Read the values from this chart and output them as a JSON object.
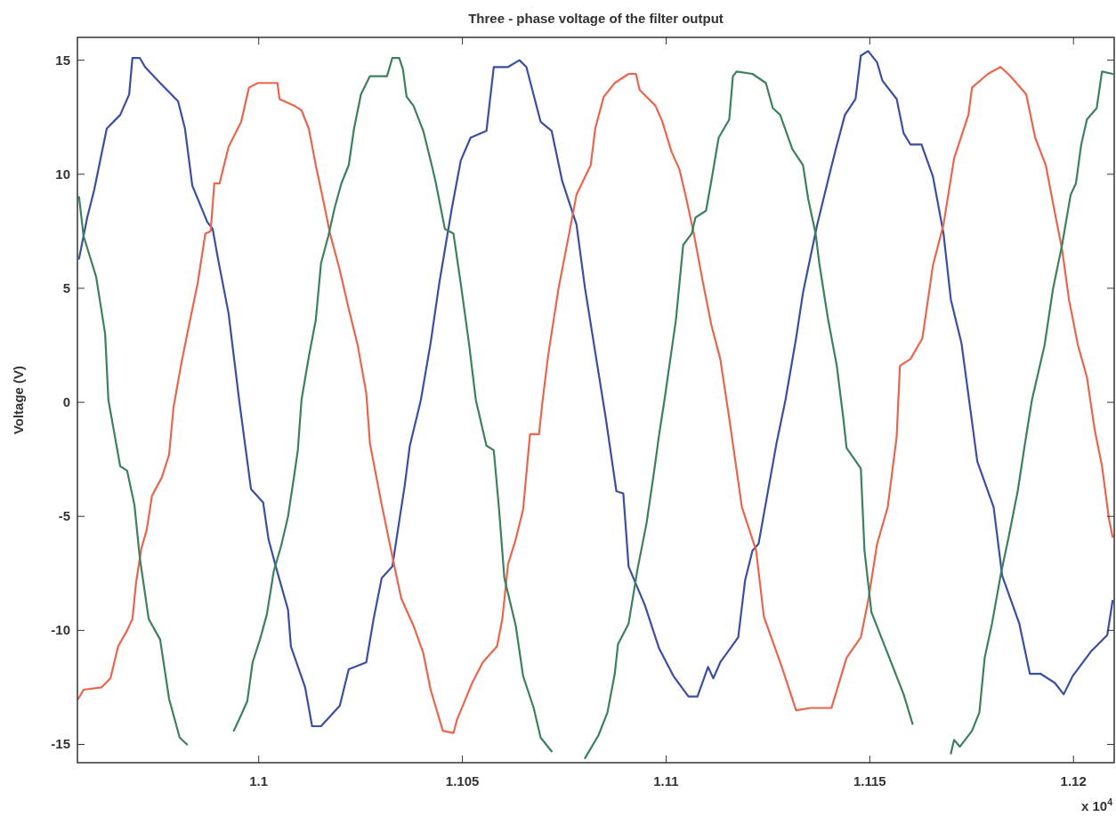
{
  "chart_data": {
    "type": "line",
    "title": "Three - phase voltage of the filter output",
    "ylabel": "Voltage (V)",
    "annotations": [
      "x 10$^{4}$"
    ],
    "xlim": [
      1.09555,
      1.121
    ],
    "ylim": [
      -15.8,
      16
    ],
    "xticks": [
      1.1,
      1.105,
      1.11,
      1.115,
      1.12
    ],
    "yticks": [
      -15,
      -10,
      -5,
      0,
      5,
      10,
      15
    ],
    "grid": false,
    "marker": "none",
    "line_style": "solid",
    "series": [
      {
        "color": "#3a4fa0",
        "x": [
          1.09559,
          1.09579,
          1.09596,
          1.09627,
          1.0966,
          1.09682,
          1.0969,
          1.09708,
          1.09721,
          1.09758,
          1.09802,
          1.09819,
          1.09837,
          1.09874,
          1.09887,
          1.099,
          1.09926,
          1.09952,
          1.09981,
          1.10011,
          1.10024,
          1.10042,
          1.10072,
          1.10079,
          1.10114,
          1.10131,
          1.10153,
          1.10199,
          1.10221,
          1.10264,
          1.10282,
          1.10302,
          1.10328,
          1.10345,
          1.10358,
          1.10371,
          1.10398,
          1.10422,
          1.10443,
          1.10474,
          1.10496,
          1.1052,
          1.10559,
          1.10577,
          1.10612,
          1.1064,
          1.10657,
          1.10692,
          1.10719,
          1.10745,
          1.1078,
          1.10801,
          1.10826,
          1.10852,
          1.10878,
          1.10895,
          1.10908,
          1.10948,
          1.10983,
          1.11018,
          1.11055,
          1.11077,
          1.11103,
          1.11116,
          1.11133,
          1.11177,
          1.11194,
          1.11212,
          1.11227,
          1.11249,
          1.11271,
          1.11293,
          1.11319,
          1.11336,
          1.11371,
          1.11397,
          1.11415,
          1.11439,
          1.11465,
          1.11478,
          1.11496,
          1.11518,
          1.11531,
          1.11566,
          1.11583,
          1.116,
          1.11627,
          1.11655,
          1.11681,
          1.11699,
          1.11725,
          1.11764,
          1.11804,
          1.11825,
          1.11867,
          1.11893,
          1.11919,
          1.11954,
          1.11976,
          1.11998,
          1.12044,
          1.12083,
          1.12096
        ],
        "values": [
          6.3,
          8.1,
          9.3,
          12.0,
          12.6,
          13.5,
          15.1,
          15.1,
          14.7,
          14.0,
          13.2,
          12.0,
          9.5,
          7.9,
          7.6,
          6.3,
          3.9,
          0.1,
          -3.8,
          -4.4,
          -6.0,
          -7.2,
          -9.1,
          -10.7,
          -12.5,
          -14.2,
          -14.2,
          -13.3,
          -11.7,
          -11.4,
          -9.5,
          -7.7,
          -7.2,
          -5.2,
          -3.7,
          -1.9,
          0.1,
          2.6,
          5.2,
          8.5,
          10.6,
          11.6,
          11.9,
          14.7,
          14.7,
          15.0,
          14.7,
          12.3,
          11.9,
          9.7,
          7.8,
          5.0,
          2.2,
          -0.7,
          -3.9,
          -4.0,
          -7.2,
          -8.9,
          -10.8,
          -12.0,
          -12.9,
          -12.9,
          -11.6,
          -12.1,
          -11.4,
          -10.3,
          -7.8,
          -6.5,
          -6.2,
          -4.0,
          -1.8,
          0.1,
          2.8,
          4.8,
          7.8,
          9.7,
          11.0,
          12.6,
          13.3,
          15.2,
          15.4,
          14.9,
          14.1,
          13.3,
          11.8,
          11.3,
          11.3,
          9.9,
          7.4,
          4.5,
          2.6,
          -2.6,
          -4.6,
          -7.6,
          -9.7,
          -11.9,
          -11.9,
          -12.3,
          -12.8,
          -12.0,
          -10.9,
          -10.2,
          -8.7
        ]
      },
      {
        "color": "#e8664f",
        "x": [
          1.09557,
          1.0957,
          1.09614,
          1.09636,
          1.09655,
          1.09677,
          1.0969,
          1.09699,
          1.09712,
          1.09725,
          1.09738,
          1.09762,
          1.0978,
          1.09791,
          1.0981,
          1.09828,
          1.0985,
          1.09869,
          1.09882,
          1.09891,
          1.09904,
          1.09926,
          1.09957,
          1.09976,
          1.09998,
          1.10046,
          1.10051,
          1.10088,
          1.10105,
          1.10123,
          1.1014,
          1.10158,
          1.10175,
          1.10199,
          1.10221,
          1.10243,
          1.10264,
          1.10273,
          1.10302,
          1.10332,
          1.1035,
          1.1038,
          1.10404,
          1.10422,
          1.10452,
          1.10478,
          1.10487,
          1.10524,
          1.1055,
          1.10585,
          1.10598,
          1.10612,
          1.10631,
          1.10649,
          1.10666,
          1.10688,
          1.10697,
          1.1071,
          1.10736,
          1.10762,
          1.1078,
          1.10815,
          1.10826,
          1.10847,
          1.10874,
          1.10908,
          1.10926,
          1.10935,
          1.10974,
          1.10991,
          1.11013,
          1.11033,
          1.1105,
          1.11068,
          1.1109,
          1.11111,
          1.11133,
          1.11155,
          1.11186,
          1.11221,
          1.1124,
          1.11284,
          1.11319,
          1.11354,
          1.11406,
          1.11443,
          1.11478,
          1.11496,
          1.11518,
          1.11544,
          1.11566,
          1.11574,
          1.116,
          1.11629,
          1.11655,
          1.11681,
          1.11707,
          1.11742,
          1.11751,
          1.1179,
          1.11821,
          1.11845,
          1.11884,
          1.11906,
          1.11932,
          1.11949,
          1.11972,
          1.11989,
          1.12011,
          1.12033,
          1.12052,
          1.1207,
          1.12087,
          1.12096
        ],
        "values": [
          -13.0,
          -12.6,
          -12.5,
          -12.1,
          -10.7,
          -10.0,
          -9.5,
          -7.9,
          -6.4,
          -5.6,
          -4.1,
          -3.3,
          -2.3,
          -0.2,
          1.7,
          3.3,
          5.2,
          7.4,
          7.5,
          9.6,
          9.6,
          11.2,
          12.3,
          13.8,
          14.0,
          14.0,
          13.3,
          13.0,
          12.8,
          12.0,
          10.4,
          8.9,
          7.4,
          5.8,
          4.1,
          2.5,
          0.4,
          -1.8,
          -4.5,
          -7.1,
          -8.6,
          -9.8,
          -11.0,
          -12.6,
          -14.4,
          -14.5,
          -13.9,
          -12.3,
          -11.4,
          -10.7,
          -9.5,
          -7.1,
          -6.0,
          -4.7,
          -1.4,
          -1.4,
          0.1,
          2.0,
          5.0,
          7.4,
          9.1,
          10.4,
          12.0,
          13.4,
          14.0,
          14.4,
          14.4,
          13.7,
          13.0,
          12.3,
          11.0,
          10.2,
          8.9,
          7.4,
          5.3,
          3.4,
          1.9,
          -0.7,
          -4.6,
          -6.5,
          -9.4,
          -11.6,
          -13.5,
          -13.4,
          -13.4,
          -11.2,
          -10.3,
          -8.7,
          -6.2,
          -4.6,
          -1.5,
          1.6,
          1.9,
          2.8,
          6.0,
          7.8,
          10.7,
          12.6,
          13.8,
          14.4,
          14.7,
          14.3,
          13.5,
          11.6,
          10.4,
          8.8,
          6.7,
          4.5,
          2.5,
          1.1,
          -1.2,
          -2.8,
          -5.1,
          -5.9
        ]
      },
      {
        "color": "#3d8060",
        "x": [
          1.09559,
          1.0957,
          1.09601,
          1.09623,
          1.09631,
          1.0966,
          1.09677,
          1.09695,
          1.09708,
          1.0973,
          1.09758,
          1.0978,
          1.09806,
          1.09824,
          1.0985,
          1.09889,
          1.09928,
          1.09939,
          1.09957,
          1.09972,
          1.09985,
          1.10003,
          1.1002,
          1.10037,
          1.10055,
          1.10072,
          1.10088,
          1.10096,
          1.10105,
          1.10123,
          1.1014,
          1.10153,
          1.10171,
          1.10186,
          1.10203,
          1.10221,
          1.10234,
          1.10251,
          1.10273,
          1.10315,
          1.10328,
          1.10345,
          1.10354,
          1.10363,
          1.1038,
          1.10404,
          1.10426,
          1.10435,
          1.10457,
          1.10478,
          1.10496,
          1.10516,
          1.10533,
          1.10559,
          1.10577,
          1.1059,
          1.10603,
          1.10631,
          1.10649,
          1.10675,
          1.10692,
          1.10719,
          1.10736,
          1.10753,
          1.10771,
          1.10801,
          1.10834,
          1.10856,
          1.10874,
          1.10882,
          1.10908,
          1.1093,
          1.10952,
          1.1097,
          1.10983,
          1.10996,
          1.11024,
          1.11042,
          1.11063,
          1.11072,
          1.11098,
          1.11111,
          1.11129,
          1.11155,
          1.11164,
          1.11173,
          1.11212,
          1.11245,
          1.11262,
          1.1128,
          1.1131,
          1.11336,
          1.11349,
          1.11367,
          1.11376,
          1.11397,
          1.11419,
          1.11435,
          1.11443,
          1.11478,
          1.11487,
          1.11504,
          1.11548,
          1.11583,
          1.11605,
          1.11614,
          1.11635,
          1.11664,
          1.11699,
          1.11707,
          1.11721,
          1.11751,
          1.11769,
          1.11782,
          1.118,
          1.11822,
          1.11841,
          1.11863,
          1.11881,
          1.11898,
          1.11929,
          1.1195,
          1.11972,
          1.11993,
          1.12006,
          1.12019,
          1.12033,
          1.12057,
          1.1207,
          1.12096
        ],
        "values": [
          9.0,
          7.3,
          5.5,
          3.0,
          0.1,
          -2.8,
          -3.0,
          -4.5,
          -6.8,
          -9.5,
          -10.4,
          -13.0,
          -14.7,
          -15.0,
          null,
          null,
          null,
          -14.4,
          -13.7,
          -13.1,
          -11.4,
          -10.4,
          -9.3,
          -7.4,
          -6.3,
          -5.0,
          -3.1,
          -2.1,
          0.1,
          2.0,
          3.6,
          6.1,
          7.3,
          8.5,
          9.6,
          10.4,
          12.0,
          13.5,
          14.3,
          14.3,
          15.1,
          15.1,
          14.6,
          13.4,
          13.0,
          11.9,
          10.3,
          9.6,
          7.6,
          7.4,
          5.2,
          2.6,
          0.1,
          -1.9,
          -2.1,
          -4.7,
          -7.7,
          -9.8,
          -12.0,
          -13.4,
          -14.7,
          -15.3,
          null,
          null,
          null,
          -15.6,
          -14.6,
          -13.6,
          -11.9,
          -10.6,
          -9.7,
          -7.3,
          -5.3,
          -3.1,
          -1.4,
          0.1,
          3.6,
          6.9,
          7.4,
          8.1,
          8.4,
          9.7,
          11.6,
          12.4,
          14.3,
          14.5,
          14.4,
          14.0,
          12.9,
          12.6,
          11.1,
          10.4,
          8.9,
          7.4,
          6.1,
          3.7,
          1.6,
          -0.7,
          -2.0,
          -2.9,
          -6.5,
          -9.2,
          -11.2,
          -12.8,
          -14.1,
          null,
          null,
          null,
          -15.4,
          -14.8,
          -15.1,
          -14.4,
          -13.6,
          -11.2,
          -9.7,
          -7.5,
          -5.9,
          -3.9,
          -1.8,
          0.1,
          2.5,
          5.0,
          6.9,
          9.1,
          9.6,
          11.3,
          12.4,
          12.9,
          14.5,
          14.4
        ]
      }
    ]
  }
}
